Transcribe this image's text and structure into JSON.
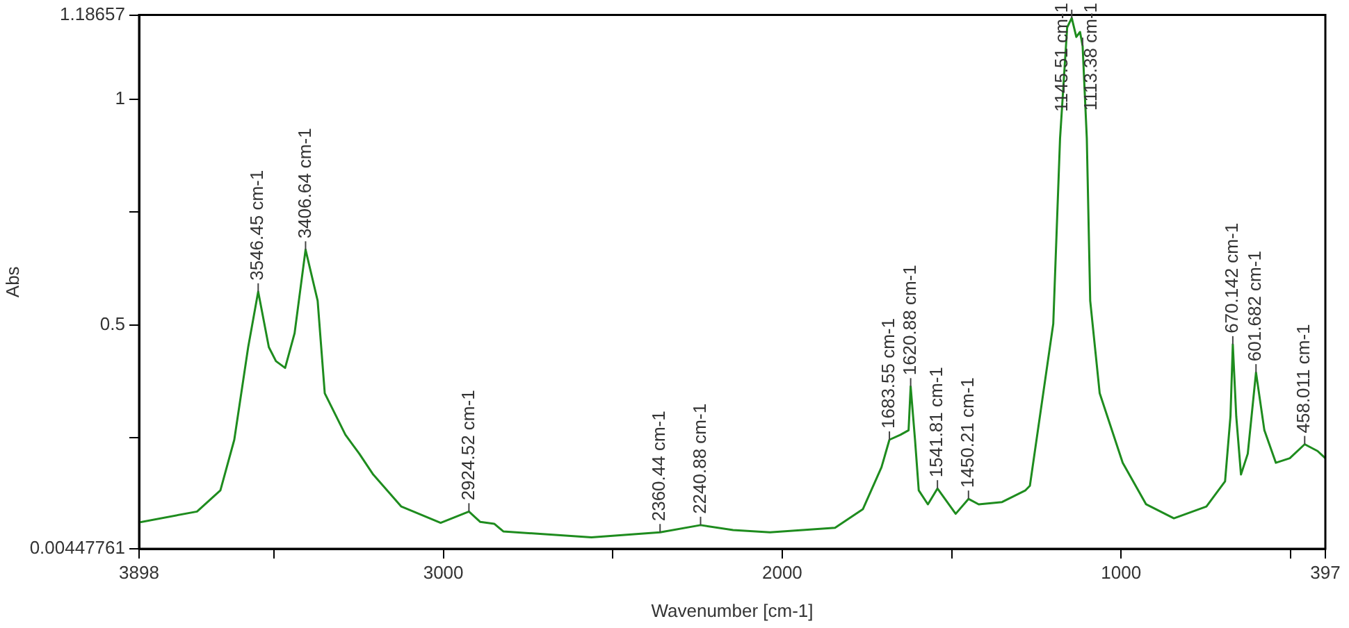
{
  "chart_data": {
    "type": "line",
    "xlabel": "Wavenumber [cm-1]",
    "ylabel": "Abs",
    "xlim": [
      3898,
      397
    ],
    "ylim": [
      0.00447761,
      1.18657
    ],
    "xticks": [
      3898,
      {
        "value": 3500,
        "label": null
      },
      3000,
      {
        "value": 2500,
        "label": null
      },
      2000,
      {
        "value": 1500,
        "label": null
      },
      1000,
      {
        "value": 500,
        "label": null
      },
      397
    ],
    "yticks": [
      0.00447761,
      {
        "value": 0.25,
        "label": null
      },
      0.5,
      {
        "value": 0.75,
        "label": null
      },
      1,
      1.18657
    ],
    "grid": false,
    "legend": false,
    "marker": "none",
    "line_style": "solid",
    "series": [
      {
        "color": "#1e8c1e",
        "x": [
          3898,
          3727,
          3658,
          3617,
          3576,
          3546.45,
          3515,
          3494,
          3467,
          3439,
          3406.64,
          3371,
          3350,
          3289,
          3248,
          3207,
          3124,
          3008,
          2924.52,
          2891,
          2850,
          2823,
          2563,
          2360.44,
          2240.88,
          2145,
          2036,
          1844,
          1762,
          1707,
          1683.55,
          1651,
          1627,
          1620.88,
          1608,
          1597,
          1570,
          1541.81,
          1488,
          1450.21,
          1420,
          1351,
          1282,
          1269,
          1200,
          1180,
          1159,
          1145.51,
          1132,
          1121,
          1113.38,
          1101,
          1091,
          1063,
          995,
          926,
          844,
          748,
          693,
          677,
          670.142,
          660,
          646,
          626,
          601.682,
          577,
          543,
          502,
          458.011,
          420,
          397
        ],
        "values": [
          0.063,
          0.087,
          0.134,
          0.246,
          0.451,
          0.574,
          0.451,
          0.42,
          0.405,
          0.482,
          0.667,
          0.554,
          0.349,
          0.257,
          0.215,
          0.169,
          0.098,
          0.062,
          0.087,
          0.064,
          0.06,
          0.043,
          0.03,
          0.041,
          0.057,
          0.046,
          0.041,
          0.051,
          0.092,
          0.185,
          0.246,
          0.257,
          0.267,
          0.364,
          0.246,
          0.134,
          0.103,
          0.138,
          0.082,
          0.115,
          0.103,
          0.108,
          0.134,
          0.144,
          0.503,
          0.913,
          1.159,
          1.18,
          1.138,
          1.149,
          1.118,
          0.913,
          0.554,
          0.349,
          0.195,
          0.103,
          0.072,
          0.098,
          0.154,
          0.298,
          0.457,
          0.298,
          0.169,
          0.215,
          0.395,
          0.267,
          0.195,
          0.205,
          0.236,
          0.221,
          0.205
        ]
      }
    ],
    "annotations": [
      {
        "text": "3546.45 cm-1",
        "x": 3546.45,
        "y": 0.574
      },
      {
        "text": "3406.64 cm-1",
        "x": 3406.64,
        "y": 0.667
      },
      {
        "text": "2924.52 cm-1",
        "x": 2924.52,
        "y": 0.087
      },
      {
        "text": "2360.44 cm-1",
        "x": 2360.44,
        "y": 0.041
      },
      {
        "text": "2240.88 cm-1",
        "x": 2240.88,
        "y": 0.057
      },
      {
        "text": "1683.55 cm-1",
        "x": 1683.55,
        "y": 0.246
      },
      {
        "text": "1620.88 cm-1",
        "x": 1620.88,
        "y": 0.364
      },
      {
        "text": "1541.81 cm-1",
        "x": 1541.81,
        "y": 0.138
      },
      {
        "text": "1450.21 cm-1",
        "x": 1450.21,
        "y": 0.115
      },
      {
        "text": "1145.51 cm-1",
        "x": 1145.51,
        "y": 1.18
      },
      {
        "text": "1113.38 cm-1",
        "x": 1113.38,
        "y": 1.118
      },
      {
        "text": "670.142 cm-1",
        "x": 670.142,
        "y": 0.457
      },
      {
        "text": "601.682 cm-1",
        "x": 601.682,
        "y": 0.395
      },
      {
        "text": "458.011 cm-1",
        "x": 458.011,
        "y": 0.236
      }
    ]
  }
}
